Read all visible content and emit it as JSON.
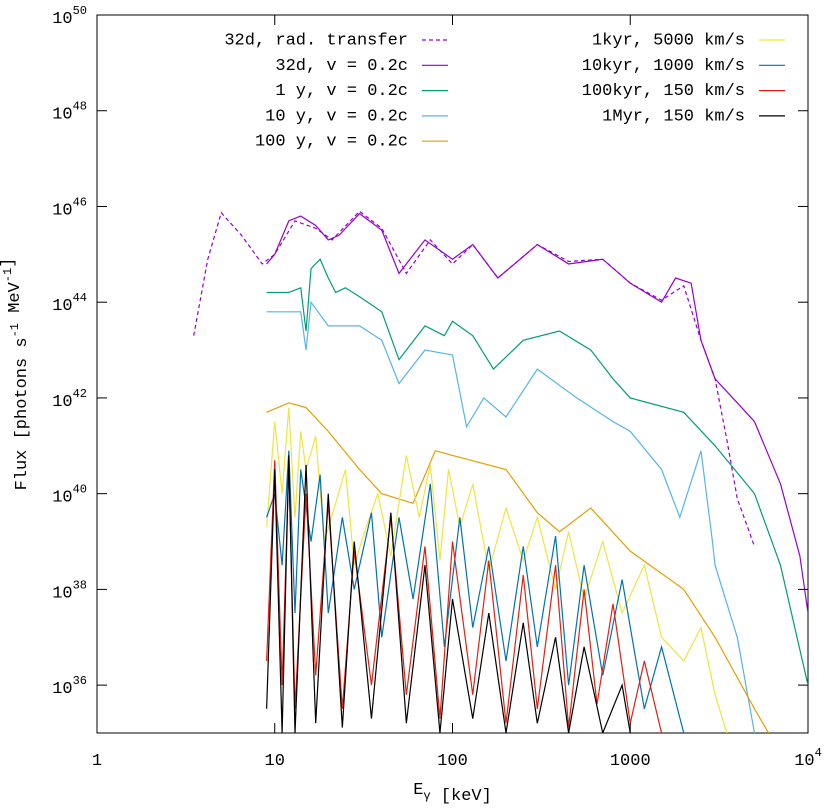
{
  "chart_data": {
    "type": "line",
    "xscale": "log",
    "yscale": "log",
    "xlabel_parts": [
      {
        "text": "E"
      },
      {
        "sub": "γ"
      },
      {
        "text": " [keV]"
      }
    ],
    "ylabel_parts": [
      {
        "text": "Flux [photons s"
      },
      {
        "sup": "-1"
      },
      {
        "text": " MeV"
      },
      {
        "sup": "-1"
      },
      {
        "text": "]"
      }
    ],
    "xlim": [
      1,
      10000
    ],
    "ylim": [
      1e+35,
      1e+50
    ],
    "xticks": [
      1,
      10,
      100,
      1000,
      {
        "value": 10000,
        "label": "10",
        "sup": "4"
      }
    ],
    "yticks": [
      {
        "value": 1e+36,
        "label": "10",
        "sup": "36"
      },
      {
        "value": 1e+38,
        "label": "10",
        "sup": "38"
      },
      {
        "value": 1e+40,
        "label": "10",
        "sup": "40"
      },
      {
        "value": 1e+42,
        "label": "10",
        "sup": "42"
      },
      {
        "value": 1e+44,
        "label": "10",
        "sup": "44"
      },
      {
        "value": 1e+46,
        "label": "10",
        "sup": "46"
      },
      {
        "value": 1e+48,
        "label": "10",
        "sup": "48"
      },
      {
        "value": 1e+50,
        "label": "10",
        "sup": "50"
      }
    ],
    "series": [
      {
        "name": "32d, rad. transfer",
        "color": "#9400d3",
        "dash": true,
        "x": [
          3.5,
          4.2,
          5,
          6.5,
          8.5,
          10,
          13,
          17,
          21,
          30,
          40,
          55,
          75,
          100,
          130,
          180,
          300,
          450,
          700,
          1000,
          1500,
          2000,
          2500,
          3000,
          3500,
          4000,
          5000
        ],
        "values": [
          2e+43,
          7.9e+44,
          7.4e+45,
          2.5e+45,
          6.3e+44,
          1e+45,
          5e+45,
          3.5e+45,
          2e+45,
          7.9e+45,
          3.5e+45,
          4e+44,
          2e+45,
          6.3e+44,
          1.6e+45,
          3.2e+44,
          1.6e+45,
          7.1e+44,
          7.9e+44,
          2.5e+44,
          1.1e+44,
          2.2e+44,
          1.6e+43,
          2.5e+42,
          1.3e+41,
          7.9e+39,
          7.9e+38
        ]
      },
      {
        "name": "32d, v = 0.2c",
        "color": "#9400d3",
        "dash": false,
        "x": [
          9,
          10,
          12,
          14,
          17,
          20,
          23,
          30,
          40,
          50,
          70,
          100,
          130,
          180,
          300,
          450,
          700,
          1000,
          1500,
          1800,
          2200,
          2500,
          3000,
          4000,
          5000,
          7000,
          9000,
          10000
        ],
        "values": [
          6.3e+44,
          1e+45,
          5e+45,
          6.3e+45,
          4e+45,
          2e+45,
          2.5e+45,
          7.1e+45,
          3.2e+45,
          4e+44,
          2e+45,
          7.9e+44,
          1.6e+45,
          3.2e+44,
          1.6e+45,
          6.3e+44,
          7.9e+44,
          2.5e+44,
          1e+44,
          3.2e+44,
          2.5e+44,
          1.6e+43,
          2.5e+42,
          7.9e+41,
          3.2e+41,
          1.6e+40,
          5e+38,
          3.2e+37
        ]
      },
      {
        "name": "1 y, v = 0.2c",
        "color": "#009e73",
        "dash": false,
        "x": [
          9,
          12,
          14,
          15,
          16,
          18,
          20,
          22,
          25,
          30,
          40,
          50,
          70,
          90,
          100,
          130,
          170,
          250,
          400,
          600,
          800,
          1000,
          2000,
          3000,
          5000,
          7000,
          10000
        ],
        "values": [
          1.6e+44,
          1.6e+44,
          2e+44,
          2.5e+43,
          5e+44,
          7.9e+44,
          3.2e+44,
          1.6e+44,
          2e+44,
          1.3e+44,
          6.3e+43,
          6.3e+42,
          3.2e+43,
          2e+43,
          4e+43,
          2e+43,
          4e+42,
          1.6e+43,
          2.5e+43,
          1e+43,
          2.5e+42,
          1e+42,
          5e+41,
          1e+41,
          1e+40,
          3.2e+38,
          1e+36
        ]
      },
      {
        "name": "10 y, v = 0.2c",
        "color": "#56b4e9",
        "dash": false,
        "x": [
          9,
          14,
          15,
          16,
          20,
          30,
          40,
          50,
          70,
          100,
          120,
          150,
          200,
          300,
          500,
          800,
          1000,
          1500,
          1900,
          2500,
          2900,
          3000,
          4000,
          5000
        ],
        "values": [
          6.3e+43,
          6.3e+43,
          1e+43,
          1e+44,
          3.2e+43,
          3.2e+43,
          1.6e+43,
          2e+42,
          1e+43,
          7.9e+42,
          2.5e+41,
          1e+42,
          4e+41,
          4e+42,
          1e+42,
          3.2e+41,
          2e+41,
          3.2e+40,
          3.2e+39,
          7.9e+40,
          1e+39,
          3.2e+38,
          1e+37,
          1e+35
        ]
      },
      {
        "name": "100 y, v = 0.2c",
        "color": "#e69f00",
        "dash": false,
        "x": [
          9,
          12,
          15,
          20,
          30,
          40,
          60,
          80,
          100,
          200,
          300,
          400,
          600,
          1000,
          2000,
          3000,
          5000,
          6000
        ],
        "values": [
          5e+41,
          7.9e+41,
          6.3e+41,
          2e+41,
          3.2e+40,
          1e+40,
          6.3e+39,
          7.9e+40,
          6.3e+40,
          3.2e+40,
          4e+39,
          1.6e+39,
          5e+39,
          6.3e+38,
          1e+38,
          1e+37,
          3.2e+35,
          1e+35
        ]
      },
      {
        "name": "1kyr, 5000 km/s",
        "color": "#f0e442",
        "dash": false,
        "x": [
          9,
          10,
          11,
          12,
          13,
          14,
          15,
          17,
          19,
          22,
          25,
          28,
          32,
          38,
          45,
          55,
          65,
          75,
          85,
          95,
          110,
          130,
          160,
          200,
          250,
          300,
          380,
          450,
          550,
          700,
          900,
          1200,
          1500,
          2000,
          2500,
          3000,
          3500
        ],
        "values": [
          2e+39,
          3.2e+41,
          1e+40,
          6.3e+41,
          3.2e+39,
          2e+41,
          3.2e+40,
          1.6e+41,
          1e+39,
          6.3e+39,
          3.2e+40,
          3.2e+38,
          1.6e+39,
          1e+40,
          5e+38,
          6.3e+40,
          3.2e+39,
          4e+40,
          4e+38,
          3.2e+40,
          2e+39,
          1.6e+40,
          2.5e+38,
          5e+39,
          4e+38,
          3.2e+39,
          1e+38,
          1.6e+39,
          6.3e+37,
          1e+39,
          3.2e+37,
          3.2e+38,
          1e+37,
          3.2e+36,
          1.6e+37,
          6.3e+35,
          1e+35
        ]
      },
      {
        "name": "10kyr, 1000 km/s",
        "color": "#0072b2",
        "dash": false,
        "x": [
          9,
          10,
          11,
          12,
          13,
          14,
          16,
          18,
          20,
          24,
          28,
          35,
          40,
          50,
          60,
          75,
          90,
          110,
          130,
          160,
          200,
          250,
          300,
          380,
          450,
          550,
          700,
          900,
          1200,
          1500,
          2000
        ],
        "values": [
          3.2e+39,
          1e+40,
          3.2e+38,
          7.9e+40,
          3.2e+37,
          3.2e+40,
          1e+39,
          2.5e+40,
          3.2e+37,
          3.2e+39,
          1e+38,
          4e+39,
          1e+37,
          3.2e+39,
          6.3e+37,
          1.6e+40,
          6.3e+36,
          3.2e+39,
          1.6e+37,
          7.9e+38,
          3.2e+36,
          7.9e+38,
          6.3e+36,
          1.3e+39,
          1e+36,
          3.2e+38,
          1.6e+36,
          1.6e+38,
          3.2e+35,
          6.3e+36,
          1e+35
        ]
      },
      {
        "name": "100kyr, 150 km/s",
        "color": "#e51e10",
        "dash": false,
        "x": [
          9,
          10,
          11,
          12,
          13,
          15,
          17,
          20,
          24,
          28,
          35,
          45,
          55,
          70,
          85,
          100,
          130,
          160,
          200,
          250,
          300,
          380,
          450,
          550,
          650,
          800,
          1000,
          1200,
          1500
        ],
        "values": [
          3.2e+36,
          5e+40,
          1e+36,
          4e+40,
          3.2e+35,
          1e+40,
          1.6e+36,
          6.3e+39,
          3.2e+35,
          6.3e+38,
          1e+36,
          3.2e+39,
          6.3e+35,
          7.9e+38,
          2e+35,
          1e+39,
          6.3e+35,
          4e+38,
          1.6e+35,
          2e+38,
          3.2e+35,
          3.2e+38,
          1.3e+35,
          1e+38,
          4e+35,
          5e+37,
          1.6e+35,
          3.2e+36,
          1e+35
        ]
      },
      {
        "name": "1Myr, 150 km/s",
        "color": "#000000",
        "dash": false,
        "x": [
          9,
          10,
          11,
          12,
          13,
          15,
          17,
          20,
          24,
          28,
          35,
          45,
          55,
          70,
          85,
          100,
          130,
          160,
          200,
          250,
          300,
          380,
          450,
          550,
          700,
          900,
          1000
        ],
        "values": [
          3.2e+35,
          3.2e+40,
          1e+35,
          6.3e+40,
          1e+35,
          4e+40,
          1.6e+35,
          1e+40,
          1.3e+35,
          1e+39,
          2e+35,
          4e+39,
          1.6e+35,
          3.2e+38,
          1e+35,
          6.3e+37,
          2e+35,
          3.2e+37,
          1e+35,
          2e+37,
          1.6e+35,
          1e+37,
          1e+35,
          6.3e+36,
          1e+35,
          1e+36,
          1e+35
        ]
      }
    ]
  }
}
